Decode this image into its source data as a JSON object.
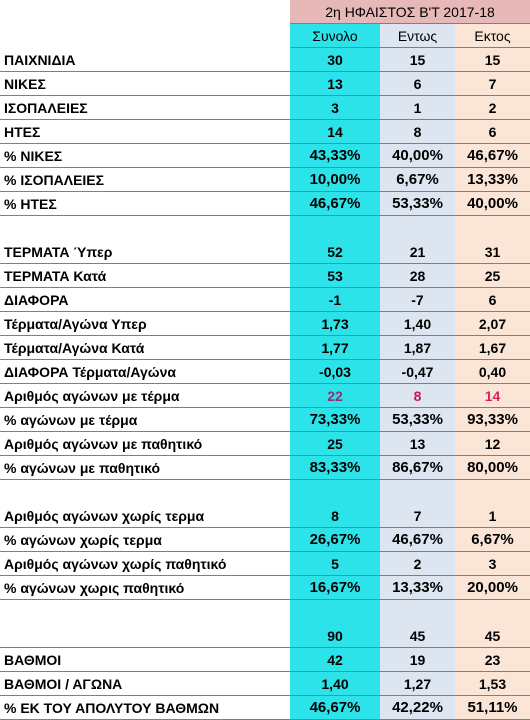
{
  "header": {
    "title": "2η ΗΦΑΙΣΤΟΣ Β'Τ 2017-18",
    "columns": [
      "Συνολο",
      "Εντως",
      "Εκτος"
    ]
  },
  "sections": [
    [
      {
        "label": "ΠΑΙΧΝΙΔΙΑ",
        "values": [
          "30",
          "15",
          "15"
        ]
      },
      {
        "label": "ΝΙΚΕΣ",
        "values": [
          "13",
          "6",
          "7"
        ]
      },
      {
        "label": "ΙΣΟΠΑΛΕΙΕΣ",
        "values": [
          "3",
          "1",
          "2"
        ]
      },
      {
        "label": "ΗΤΕΣ",
        "values": [
          "14",
          "8",
          "6"
        ]
      },
      {
        "label": "% ΝΙΚΕΣ",
        "values": [
          "43,33%",
          "40,00%",
          "46,67%"
        ]
      },
      {
        "label": "% ΙΣΟΠΑΛΕΙΕΣ",
        "values": [
          "10,00%",
          "6,67%",
          "13,33%"
        ]
      },
      {
        "label": "% ΗΤΕΣ",
        "values": [
          "46,67%",
          "53,33%",
          "40,00%"
        ]
      }
    ],
    [
      {
        "label": "ΤΕΡΜΑΤΑ Ύπερ",
        "values": [
          "52",
          "21",
          "31"
        ]
      },
      {
        "label": "ΤΕΡΜΑΤΑ Κατά",
        "values": [
          "53",
          "28",
          "25"
        ]
      },
      {
        "label": "ΔΙΑΦΟΡΑ",
        "values": [
          "-1",
          "-7",
          "6"
        ]
      },
      {
        "label": "Τέρματα/Αγώνα Υπερ",
        "values": [
          "1,73",
          "1,40",
          "2,07"
        ]
      },
      {
        "label": "Τέρματα/Αγώνα Κατά",
        "values": [
          "1,77",
          "1,87",
          "1,67"
        ]
      },
      {
        "label": "ΔΙΑΦΟΡΑ Τέρματα/Αγώνα",
        "values": [
          "-0,03",
          "-0,47",
          "0,40"
        ]
      },
      {
        "label": "Αριθμός αγώνων με τέρμα",
        "values": [
          "22",
          "8",
          "14"
        ],
        "value_colors": [
          "#9a2a78",
          "#d0105a",
          "#e0205e"
        ]
      },
      {
        "label": "%  αγώνων με τέρμα",
        "values": [
          "73,33%",
          "53,33%",
          "93,33%"
        ]
      },
      {
        "label": "Αριθμός αγώνων με παθητικό",
        "values": [
          "25",
          "13",
          "12"
        ]
      },
      {
        "label": "% αγώνων με παθητικό",
        "values": [
          "83,33%",
          "86,67%",
          "80,00%"
        ]
      }
    ],
    [
      {
        "label": "Αριθμός αγώνων χωρίς τερμα",
        "values": [
          "8",
          "7",
          "1"
        ]
      },
      {
        "label": "% αγώνων χωρίς τερμα",
        "values": [
          "26,67%",
          "46,67%",
          "6,67%"
        ]
      },
      {
        "label": "Αριθμός αγώνων χωρίς παθητικό",
        "values": [
          "5",
          "2",
          "3"
        ]
      },
      {
        "label": "% αγώνων χωρις παθητικό",
        "values": [
          "16,67%",
          "13,33%",
          "20,00%"
        ]
      }
    ],
    [
      {
        "values": [
          "90",
          "45",
          "45"
        ]
      },
      {
        "label": "ΒΑΘΜΟΙ",
        "values": [
          "42",
          "19",
          "23"
        ]
      },
      {
        "label": "ΒΑΘΜΟΙ / ΑΓΩΝΑ",
        "values": [
          "1,40",
          "1,27",
          "1,53"
        ]
      },
      {
        "label": "% ΕΚ ΤΟΥ ΑΠΟΛΥΤΟΥ ΒΑΘΜΩΝ",
        "values": [
          "46,67%",
          "42,22%",
          "51,11%"
        ]
      }
    ]
  ]
}
